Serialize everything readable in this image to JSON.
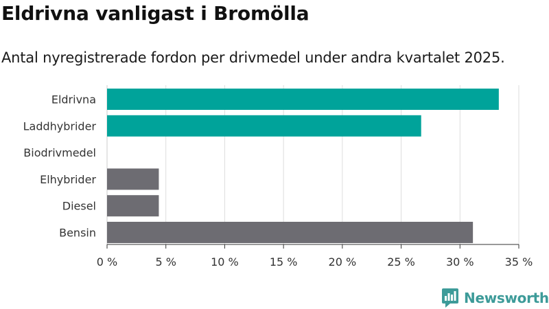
{
  "title": "Eldrivna vanligast i Bromölla",
  "subtitle": "Antal nyregistrerade fordon per drivmedel under andra kvartalet 2025.",
  "brand": "Newsworthy",
  "colors": {
    "highlight": "#00a39a",
    "default": "#6d6c72",
    "gridline": "#dddddd",
    "brand": "#3d9b99"
  },
  "chart_data": {
    "type": "bar",
    "orientation": "horizontal",
    "categories": [
      "Eldrivna",
      "Laddhybrider",
      "Biodrivmedel",
      "Elhybrider",
      "Diesel",
      "Bensin"
    ],
    "values": [
      33.3,
      26.7,
      0,
      4.4,
      4.4,
      31.1
    ],
    "highlighted": [
      true,
      true,
      false,
      false,
      false,
      false
    ],
    "xlim": [
      0,
      35
    ],
    "xticks": [
      0,
      5,
      10,
      15,
      20,
      25,
      30,
      35
    ],
    "tick_suffix": " %",
    "grid": true
  }
}
